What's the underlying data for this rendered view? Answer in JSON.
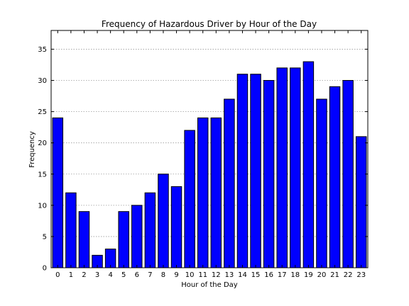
{
  "chart_data": {
    "type": "bar",
    "title": "Frequency of Hazardous Driver by Hour of the Day",
    "xlabel": "Hour of the Day",
    "ylabel": "Frequency",
    "categories": [
      "0",
      "1",
      "2",
      "3",
      "4",
      "5",
      "6",
      "7",
      "8",
      "9",
      "10",
      "11",
      "12",
      "13",
      "14",
      "15",
      "16",
      "17",
      "18",
      "19",
      "20",
      "21",
      "22",
      "23"
    ],
    "values": [
      24,
      12,
      9,
      2,
      3,
      9,
      10,
      12,
      15,
      13,
      22,
      24,
      24,
      27,
      31,
      31,
      30,
      32,
      32,
      33,
      27,
      29,
      30,
      21
    ],
    "ylim": [
      0,
      38
    ],
    "yticks": [
      0,
      5,
      10,
      15,
      20,
      25,
      30,
      35
    ],
    "grid": "y-dotted",
    "bar_color": "#0000ff",
    "edge_color": "#000000"
  }
}
